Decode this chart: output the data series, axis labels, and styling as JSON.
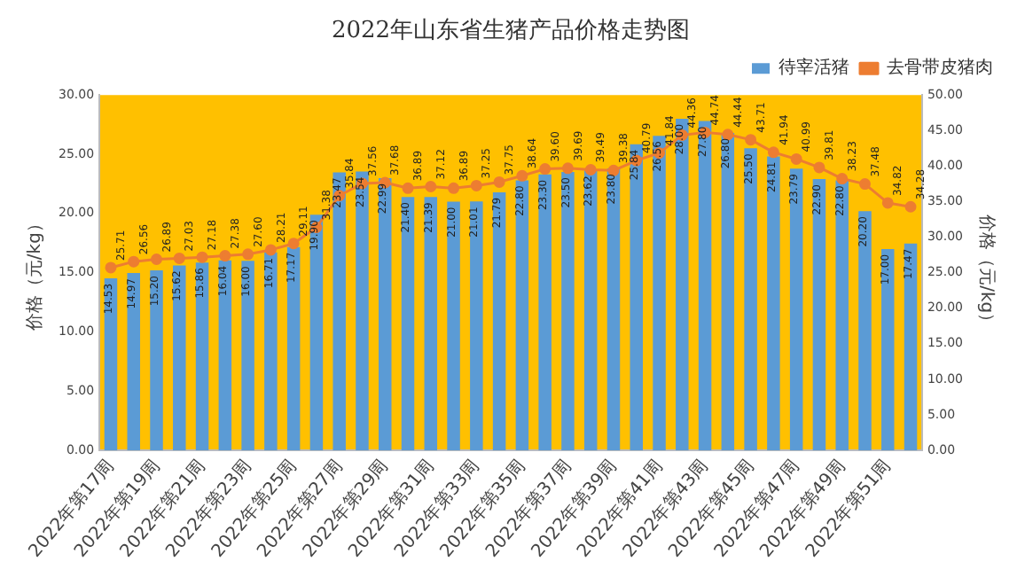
{
  "chart_data": {
    "type": "bar",
    "title": "2022年山东省生猪产品价格走势图",
    "ylabel": "价格（元/kg）",
    "y2label": "价格（元/kg）",
    "categories": [
      "2022年第17周",
      null,
      "2022年第19周",
      null,
      "2022年第21周",
      null,
      "2022年第23周",
      null,
      "2022年第25周",
      null,
      "2022年第27周",
      null,
      "2022年第29周",
      null,
      "2022年第31周",
      null,
      "2022年第33周",
      null,
      "2022年第35周",
      null,
      "2022年第37周",
      null,
      "2022年第39周",
      null,
      "2022年第41周",
      null,
      "2022年第43周",
      null,
      "2022年第45周",
      null,
      "2022年第47周",
      null,
      "2022年第49周",
      null,
      "2022年第51周",
      null
    ],
    "series": [
      {
        "name": "待宰活猪",
        "color": "#5b9bd5",
        "values": [
          14.53,
          14.97,
          15.2,
          15.62,
          15.86,
          16.04,
          16.0,
          16.71,
          17.17,
          19.9,
          23.47,
          23.54,
          22.99,
          21.4,
          21.39,
          21.0,
          21.01,
          21.79,
          22.8,
          23.3,
          23.5,
          23.62,
          23.8,
          25.84,
          26.56,
          28.0,
          27.8,
          26.8,
          25.5,
          24.81,
          23.79,
          22.9,
          22.8,
          20.2,
          17.0,
          17.47
        ],
        "value_labels": [
          "14.53",
          "14.97",
          "15.20",
          "15.62",
          "15.86",
          "16.04",
          "16.00",
          "16.71",
          "17.17",
          "19.90",
          "23.47",
          "23.54",
          "22.99",
          "21.40",
          "21.39",
          "21.00",
          "21.01",
          "21.79",
          "22.80",
          "23.30",
          "23.50",
          "23.62",
          "23.80",
          "25.84",
          "26.56",
          "28.00",
          "27.80",
          "26.80",
          "25.50",
          "24.81",
          "23.79",
          "22.90",
          "22.80",
          "20.20",
          "17.00",
          "17.47"
        ]
      },
      {
        "name": "去骨带皮猪肉",
        "type": "line",
        "axis": "y2",
        "color": "#ed7d31",
        "marker": "circle",
        "line_style": "solid",
        "values": [
          25.71,
          26.56,
          26.89,
          27.03,
          27.18,
          27.38,
          27.6,
          28.21,
          29.11,
          31.38,
          35.84,
          37.56,
          37.68,
          36.89,
          37.12,
          36.89,
          37.25,
          37.75,
          38.64,
          39.6,
          39.69,
          39.49,
          39.38,
          40.79,
          41.84,
          44.36,
          44.74,
          44.44,
          43.71,
          41.94,
          40.99,
          39.81,
          38.23,
          37.48,
          34.82,
          34.28
        ],
        "value_labels": [
          "25.71",
          "26.56",
          "26.89",
          "27.03",
          "27.18",
          "27.38",
          "27.60",
          "28.21",
          "29.11",
          "31.38",
          "35.84",
          "37.56",
          "37.68",
          "36.89",
          "37.12",
          "36.89",
          "37.25",
          "37.75",
          "38.64",
          "39.60",
          "39.69",
          "39.49",
          "39.38",
          "40.79",
          "41.84",
          "44.36",
          "44.74",
          "44.44",
          "43.71",
          "41.94",
          "40.99",
          "39.81",
          "38.23",
          "37.48",
          "34.82",
          "34.28"
        ]
      }
    ],
    "ylim": [
      0,
      30
    ],
    "yticks": [
      {
        "value": 0,
        "label": "0.00"
      },
      {
        "value": 5,
        "label": "5.00"
      },
      {
        "value": 10,
        "label": "10.00"
      },
      {
        "value": 15,
        "label": "15.00"
      },
      {
        "value": 20,
        "label": "20.00"
      },
      {
        "value": 25,
        "label": "25.00"
      },
      {
        "value": 30,
        "label": "30.00"
      }
    ],
    "y2lim": [
      0,
      50
    ],
    "y2ticks": [
      {
        "value": 0,
        "label": "0.00"
      },
      {
        "value": 5,
        "label": "5.00"
      },
      {
        "value": 10,
        "label": "10.00"
      },
      {
        "value": 15,
        "label": "15.00"
      },
      {
        "value": 20,
        "label": "20.00"
      },
      {
        "value": 25,
        "label": "25.00"
      },
      {
        "value": 30,
        "label": "30.00"
      },
      {
        "value": 35,
        "label": "35.00"
      },
      {
        "value": 40,
        "label": "40.00"
      },
      {
        "value": 45,
        "label": "45.00"
      },
      {
        "value": 50,
        "label": "50.00"
      }
    ],
    "grid": false,
    "legend": "top right"
  }
}
